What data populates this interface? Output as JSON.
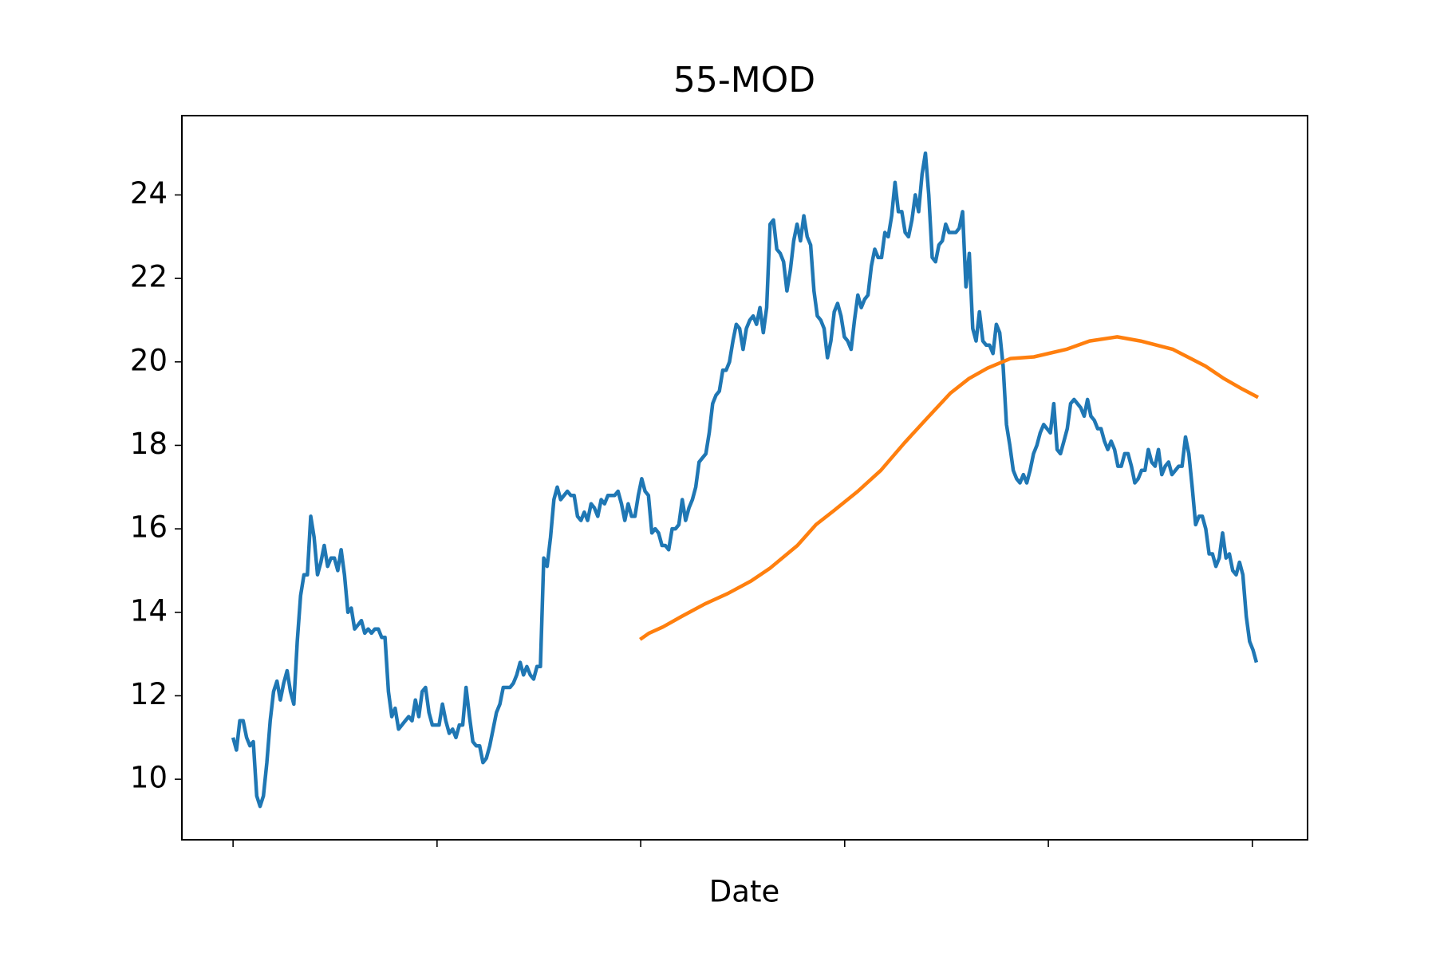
{
  "chart_data": {
    "type": "line",
    "title": "55-MOD",
    "xlabel": "Date",
    "xlim": [
      -15.15,
      318.15
    ],
    "xticks": [
      0,
      60.4,
      120.7,
      181.1,
      241.4,
      301.8
    ],
    "ylim": [
      8.55,
      25.9
    ],
    "yticks": [
      10,
      12,
      14,
      16,
      18,
      20,
      22,
      24
    ],
    "series": [
      {
        "color": "#1f77b4",
        "values": [
          11.0,
          10.7,
          11.4,
          11.4,
          11.0,
          10.8,
          10.9,
          9.6,
          9.35,
          9.6,
          10.4,
          11.4,
          12.1,
          12.35,
          11.9,
          12.3,
          12.6,
          12.1,
          11.8,
          13.3,
          14.4,
          14.9,
          14.9,
          16.3,
          15.8,
          14.9,
          15.2,
          15.6,
          15.1,
          15.3,
          15.3,
          15.0,
          15.5,
          14.9,
          14.0,
          14.1,
          13.6,
          13.7,
          13.8,
          13.5,
          13.6,
          13.5,
          13.6,
          13.6,
          13.4,
          13.4,
          12.1,
          11.5,
          11.7,
          11.2,
          11.3,
          11.4,
          11.5,
          11.4,
          11.9,
          11.5,
          12.1,
          12.2,
          11.6,
          11.3,
          11.3,
          11.3,
          11.8,
          11.4,
          11.1,
          11.2,
          11.0,
          11.3,
          11.3,
          12.2,
          11.5,
          10.9,
          10.8,
          10.8,
          10.4,
          10.5,
          10.8,
          11.2,
          11.6,
          11.8,
          12.2,
          12.2,
          12.2,
          12.3,
          12.5,
          12.8,
          12.5,
          12.7,
          12.5,
          12.4,
          12.7,
          12.7,
          15.3,
          15.1,
          15.8,
          16.7,
          17.0,
          16.7,
          16.8,
          16.9,
          16.8,
          16.8,
          16.3,
          16.2,
          16.4,
          16.2,
          16.6,
          16.5,
          16.3,
          16.7,
          16.6,
          16.8,
          16.8,
          16.8,
          16.9,
          16.6,
          16.2,
          16.6,
          16.3,
          16.3,
          16.8,
          17.2,
          16.9,
          16.8,
          15.9,
          16.0,
          15.9,
          15.6,
          15.6,
          15.5,
          16.0,
          16.0,
          16.1,
          16.7,
          16.2,
          16.5,
          16.7,
          17.0,
          17.6,
          17.7,
          17.8,
          18.3,
          19.0,
          19.2,
          19.3,
          19.8,
          19.8,
          20.0,
          20.5,
          20.9,
          20.8,
          20.3,
          20.8,
          21.0,
          21.1,
          20.9,
          21.3,
          20.7,
          21.3,
          23.3,
          23.4,
          22.7,
          22.6,
          22.4,
          21.7,
          22.2,
          22.9,
          23.3,
          22.9,
          23.5,
          23.0,
          22.8,
          21.7,
          21.1,
          21.0,
          20.8,
          20.1,
          20.5,
          21.2,
          21.4,
          21.1,
          20.6,
          20.5,
          20.3,
          21.0,
          21.6,
          21.3,
          21.5,
          21.6,
          22.3,
          22.7,
          22.5,
          22.5,
          23.1,
          23.0,
          23.5,
          24.3,
          23.6,
          23.6,
          23.1,
          23.0,
          23.4,
          24.0,
          23.6,
          24.5,
          25.0,
          24.0,
          22.5,
          22.4,
          22.8,
          22.9,
          23.3,
          23.1,
          23.1,
          23.1,
          23.2,
          23.6,
          21.8,
          22.6,
          20.8,
          20.5,
          21.2,
          20.5,
          20.4,
          20.4,
          20.2,
          20.9,
          20.7,
          19.9,
          18.5,
          18.0,
          17.4,
          17.2,
          17.1,
          17.3,
          17.1,
          17.4,
          17.8,
          18.0,
          18.3,
          18.5,
          18.4,
          18.3,
          19.0,
          17.9,
          17.8,
          18.1,
          18.4,
          19.0,
          19.1,
          19.0,
          18.9,
          18.7,
          19.1,
          18.7,
          18.6,
          18.4,
          18.4,
          18.1,
          17.9,
          18.1,
          17.9,
          17.5,
          17.5,
          17.8,
          17.8,
          17.5,
          17.1,
          17.2,
          17.4,
          17.4,
          17.9,
          17.6,
          17.5,
          17.9,
          17.3,
          17.5,
          17.6,
          17.3,
          17.4,
          17.5,
          17.5,
          18.2,
          17.8,
          17.0,
          16.1,
          16.3,
          16.3,
          16.0,
          15.4,
          15.4,
          15.1,
          15.3,
          15.9,
          15.3,
          15.4,
          15.0,
          14.9,
          15.2,
          14.9,
          13.9,
          13.3,
          13.1,
          12.8
        ]
      },
      {
        "color": "#ff7f0e",
        "x": [
          120.5,
          123.2,
          127.3,
          132.8,
          139.7,
          146.5,
          153.4,
          158.9,
          167.1,
          172.6,
          178.1,
          185,
          191.8,
          198.7,
          205.5,
          212.4,
          217.9,
          223.4,
          230.2,
          237.1,
          246.7,
          253.6,
          261.8,
          268.7,
          278.3,
          287.9,
          293.4,
          298.8,
          303.5
        ],
        "values": [
          13.35,
          13.5,
          13.65,
          13.9,
          14.2,
          14.45,
          14.75,
          15.05,
          15.6,
          16.1,
          16.45,
          16.9,
          17.4,
          18.05,
          18.65,
          19.25,
          19.6,
          19.85,
          20.08,
          20.12,
          20.3,
          20.5,
          20.6,
          20.5,
          20.3,
          19.9,
          19.6,
          19.35,
          19.15
        ]
      }
    ]
  }
}
